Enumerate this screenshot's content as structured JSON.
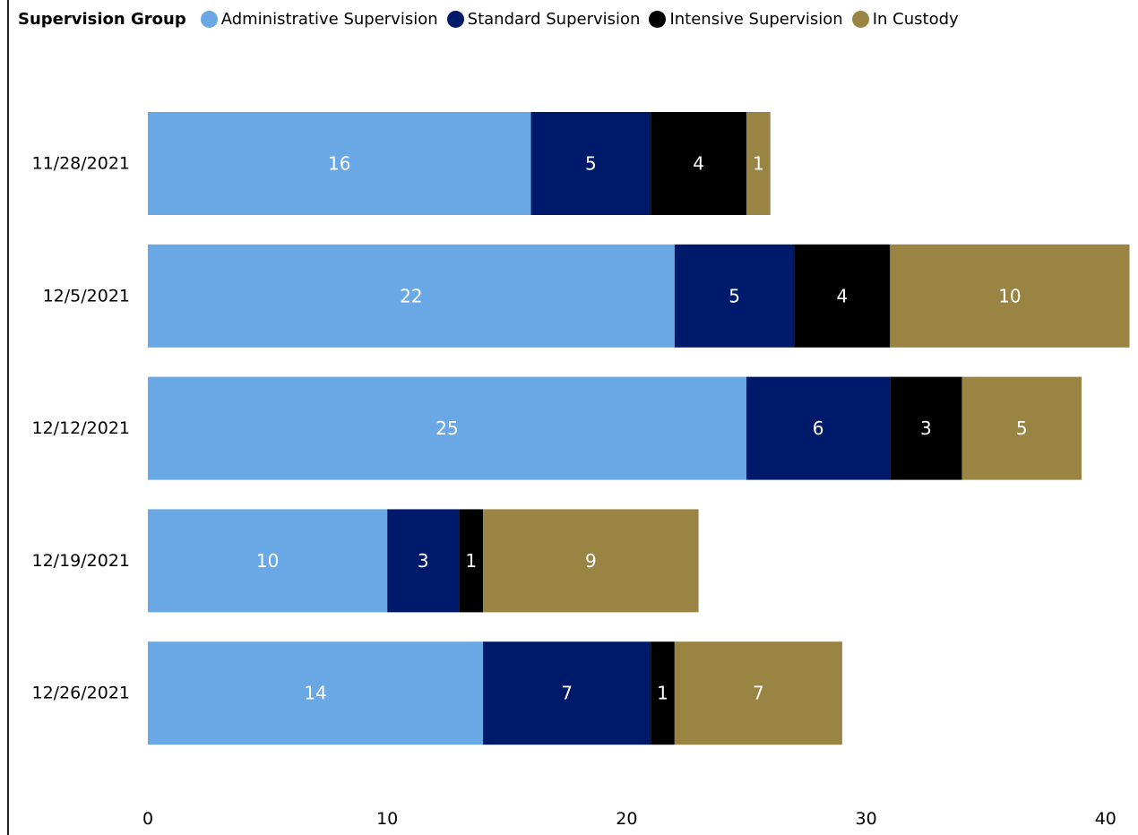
{
  "legend": {
    "title": "Supervision Group"
  },
  "chart_data": {
    "type": "bar",
    "orientation": "horizontal",
    "stacked": true,
    "categories": [
      "11/28/2021",
      "12/5/2021",
      "12/12/2021",
      "12/19/2021",
      "12/26/2021"
    ],
    "series": [
      {
        "name": "Administrative Supervision",
        "color": "#69a8e4",
        "values": [
          16,
          22,
          25,
          10,
          14
        ]
      },
      {
        "name": "Standard Supervision",
        "color": "#001a6b",
        "values": [
          5,
          5,
          6,
          3,
          7
        ]
      },
      {
        "name": "Intensive Supervision",
        "color": "#000000",
        "values": [
          4,
          4,
          3,
          1,
          1
        ]
      },
      {
        "name": "In Custody",
        "color": "#998443",
        "values": [
          1,
          10,
          5,
          9,
          7
        ]
      }
    ],
    "xlim": [
      0,
      41
    ],
    "xticks": [
      0,
      10,
      20,
      30,
      40
    ],
    "xlabel": "",
    "ylabel": "",
    "grid": false,
    "legend_position": "top-left",
    "data_labels": true
  }
}
